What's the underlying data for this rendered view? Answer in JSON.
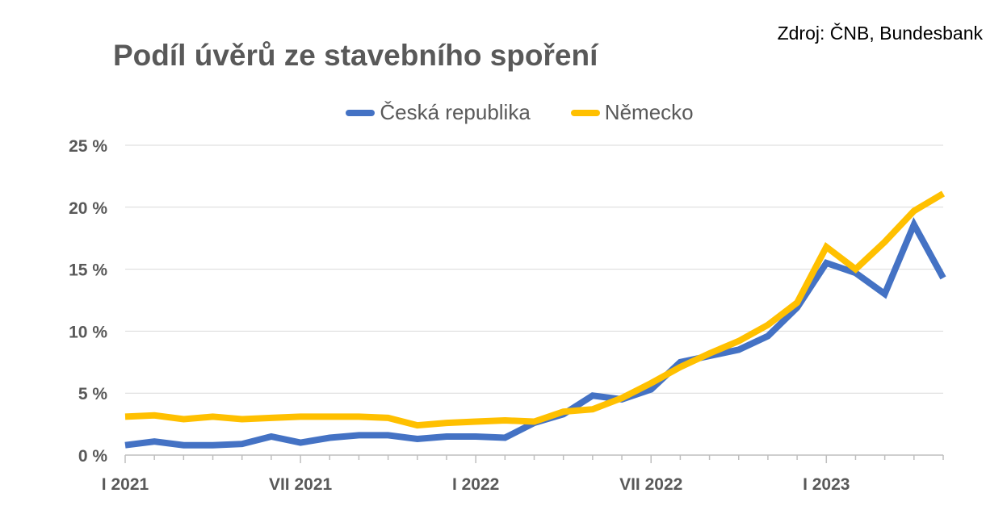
{
  "source_label": "Zdroj: ČNB, Bundesbank",
  "chart_data": {
    "type": "line",
    "title": "Podíl úvěrů ze stavebního spoření",
    "xlabel": "",
    "ylabel": "",
    "ylim": [
      0,
      25
    ],
    "y_ticks": [
      "0 %",
      "5 %",
      "10 %",
      "15 %",
      "20 %",
      "25 %"
    ],
    "x_tick_labels": [
      {
        "index": 0,
        "label": "I 2021"
      },
      {
        "index": 6,
        "label": "VII 2021"
      },
      {
        "index": 12,
        "label": "I 2022"
      },
      {
        "index": 18,
        "label": "VII 2022"
      },
      {
        "index": 24,
        "label": "I 2023"
      }
    ],
    "grid": "horizontal",
    "legend_position": "top-center",
    "x": [
      "I 2021",
      "II 2021",
      "III 2021",
      "IV 2021",
      "V 2021",
      "VI 2021",
      "VII 2021",
      "VIII 2021",
      "IX 2021",
      "X 2021",
      "XI 2021",
      "XII 2021",
      "I 2022",
      "II 2022",
      "III 2022",
      "IV 2022",
      "V 2022",
      "VI 2022",
      "VII 2022",
      "VIII 2022",
      "IX 2022",
      "X 2022",
      "XI 2022",
      "XII 2022",
      "I 2023",
      "II 2023",
      "III 2023",
      "IV 2023",
      "V 2023"
    ],
    "series": [
      {
        "name": "Česká republika",
        "color": "#4472C4",
        "values": [
          0.8,
          1.1,
          0.8,
          0.8,
          0.9,
          1.5,
          1.0,
          1.4,
          1.6,
          1.6,
          1.3,
          1.5,
          1.5,
          1.4,
          2.6,
          3.3,
          4.8,
          4.5,
          5.3,
          7.5,
          8.0,
          8.5,
          9.6,
          11.9,
          15.5,
          14.7,
          13.0,
          18.6,
          14.3
        ]
      },
      {
        "name": "Německo",
        "color": "#FFC000",
        "values": [
          3.1,
          3.2,
          2.9,
          3.1,
          2.9,
          3.0,
          3.1,
          3.1,
          3.1,
          3.0,
          2.4,
          2.6,
          2.7,
          2.8,
          2.7,
          3.5,
          3.7,
          4.6,
          5.8,
          7.1,
          8.2,
          9.2,
          10.5,
          12.3,
          16.8,
          15.0,
          17.2,
          19.7,
          21.1
        ]
      }
    ]
  }
}
